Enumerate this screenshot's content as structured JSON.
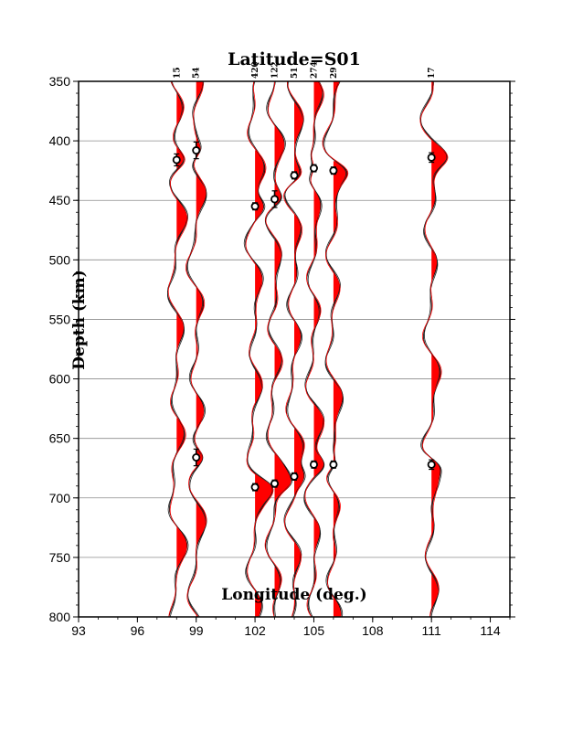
{
  "chart_data": {
    "type": "line",
    "title": "Latitude=S01",
    "xlabel": "Longitude (deg.)",
    "ylabel": "Depth (km)",
    "xlim": [
      93,
      115
    ],
    "ylim": [
      350,
      800
    ],
    "y_reversed": true,
    "grid": "horizontal",
    "x_ticks": [
      93,
      96,
      99,
      102,
      105,
      108,
      111,
      114
    ],
    "y_ticks": [
      350,
      400,
      450,
      500,
      550,
      600,
      650,
      700,
      750,
      800
    ],
    "positive_fill_color": "#ff0000",
    "stations": [
      {
        "label": "15",
        "longitude": 98.0,
        "markers": [
          {
            "depth": 416,
            "err": 5
          }
        ]
      },
      {
        "label": "54",
        "longitude": 99.0,
        "markers": [
          {
            "depth": 408,
            "err": 7
          },
          {
            "depth": 666,
            "err": 7
          }
        ]
      },
      {
        "label": "420",
        "longitude": 102.0,
        "markers": [
          {
            "depth": 455,
            "err": 3
          },
          {
            "depth": 691,
            "err": 3
          }
        ]
      },
      {
        "label": "122",
        "longitude": 103.0,
        "markers": [
          {
            "depth": 449,
            "err": 7
          },
          {
            "depth": 688,
            "err": 3
          }
        ]
      },
      {
        "label": "51",
        "longitude": 104.0,
        "markers": [
          {
            "depth": 429,
            "err": 3
          },
          {
            "depth": 682,
            "err": 3
          }
        ]
      },
      {
        "label": "274",
        "longitude": 105.0,
        "markers": [
          {
            "depth": 423,
            "err": 3
          },
          {
            "depth": 672,
            "err": 3
          }
        ]
      },
      {
        "label": "29",
        "longitude": 106.0,
        "markers": [
          {
            "depth": 425,
            "err": 3
          },
          {
            "depth": 672,
            "err": 3
          }
        ]
      },
      {
        "label": "17",
        "longitude": 111.0,
        "markers": [
          {
            "depth": 414,
            "err": 4
          },
          {
            "depth": 672,
            "err": 4
          }
        ]
      }
    ]
  }
}
